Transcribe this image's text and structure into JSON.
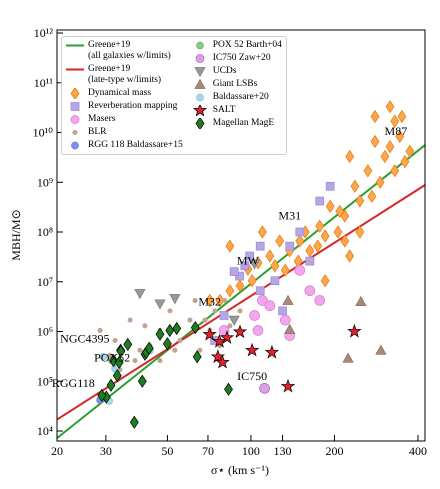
{
  "chart_data": {
    "type": "scatter",
    "xscale": "log",
    "yscale": "log",
    "x_label": "σ⋆ (km s⁻¹)",
    "y_label": "MBH/M⊙",
    "xlim": [
      20,
      424
    ],
    "ylim": [
      6300,
      1150000000000
    ],
    "xticks": [
      20,
      30,
      50,
      70,
      100,
      130,
      200,
      400
    ],
    "yticks": [
      {
        "value": 10000,
        "label": "10⁴"
      },
      {
        "value": 100000,
        "label": "10⁵"
      },
      {
        "value": 1000000,
        "label": "10⁶"
      },
      {
        "value": 10000000,
        "label": "10⁷"
      },
      {
        "value": 100000000,
        "label": "10⁸"
      },
      {
        "value": 1000000000,
        "label": "10⁹"
      },
      {
        "value": 10000000000,
        "label": "10¹⁰"
      },
      {
        "value": 100000000000,
        "label": "10¹¹"
      },
      {
        "value": 1000000000000,
        "label": "10¹²"
      }
    ],
    "series": [
      {
        "name": "Greene+19\n(all galaxies w/limits)",
        "type": "line",
        "color": "#2ca02c",
        "x": [
          20,
          424
        ],
        "values": [
          7200,
          5600000000
        ]
      },
      {
        "name": "Greene+19\n(late-type w/limits)",
        "type": "line",
        "color": "#d62728",
        "x": [
          20,
          424
        ],
        "values": [
          17000,
          880000000
        ]
      },
      {
        "name": "Dynamical mass",
        "type": "scatter",
        "marker": "diamond",
        "color": "#ffa64d",
        "edge": "#e07a10",
        "x": [
          374,
          359,
          344,
          330,
          317,
          304,
          292,
          280,
          273,
          264,
          247,
          237,
          227,
          218,
          209,
          206,
          193,
          185,
          177,
          174,
          163,
          157,
          150,
          148,
          138,
          133,
          127,
          122,
          117,
          110,
          106,
          101,
          97.5,
          91.3,
          84,
          77.3,
          71.1,
          84,
          185,
          350,
          330,
          280,
          317,
          247,
          227,
          218
        ],
        "values": [
          4200000000,
          2600000000,
          8300000000,
          1700000000,
          5200000000,
          3300000000,
          1000000000,
          6600000000,
          520000000,
          1700000000,
          420000000,
          830000000,
          3300000000,
          210000000,
          260000000,
          100000000,
          330000000,
          83000000,
          130000000,
          52000000,
          42000000,
          100000000,
          66000000,
          26000000,
          42000000,
          17000000,
          66000000,
          21000000,
          33000000,
          100000000,
          24000000,
          10500000,
          18000000,
          8300000,
          6600000,
          4200000,
          4200000,
          52000000,
          10500000,
          21000000000,
          17000000000,
          21000000000,
          33000000000,
          100000000,
          33000000,
          66000000
        ]
      },
      {
        "name": "Reverberation mapping",
        "type": "scatter",
        "marker": "square",
        "color": "#b5a6e6",
        "edge": "#9a88d8",
        "x": [
          95,
          99,
          91,
          108,
          138,
          150,
          177,
          193,
          108,
          122,
          80,
          74,
          87,
          130,
          163
        ],
        "values": [
          21000000,
          33000000,
          13000000,
          6600000,
          52000000,
          100000000,
          420000000,
          830000000,
          52000000,
          10500000,
          2100000,
          660000,
          16000000,
          2600000,
          26000000
        ]
      },
      {
        "name": "Masers",
        "type": "scatter",
        "marker": "circle",
        "size": 5,
        "color": "#f2a6ec",
        "edge": "#d77bd2",
        "x": [
          110,
          117,
          133,
          138,
          150,
          163,
          106,
          80,
          177,
          103
        ],
        "values": [
          4200000,
          3300000,
          1700000,
          830000,
          17000000,
          6600000,
          1050000,
          1050000,
          4200000,
          2100000
        ]
      },
      {
        "name": "BLR",
        "type": "scatter",
        "marker": "circle",
        "size": 2.2,
        "color": "#c4a291",
        "edge": "#c4a291",
        "x": [
          28.6,
          32.4,
          36.7,
          39.8,
          43.3,
          47,
          51.1,
          55.5,
          60.3,
          65.5,
          71.1,
          74.2,
          77.3,
          84,
          91.3,
          33.7,
          38.2,
          47,
          53.2,
          62.9,
          68.3,
          80.6,
          31,
          41.5
        ],
        "values": [
          1050000,
          660000,
          1700000,
          420000,
          520000,
          1050000,
          2600000,
          660000,
          1700000,
          420000,
          1050000,
          2600000,
          520000,
          1300000,
          2600000,
          170000,
          260000,
          260000,
          420000,
          4200000,
          1700000,
          4200000,
          330000,
          1300000
        ]
      },
      {
        "name": "RGG 118 Baldassare+15",
        "type": "scatter",
        "marker": "circle",
        "size": 3.5,
        "color": "#7f90ea",
        "edge": "#6a7cd8",
        "x": [
          28.6
        ],
        "values": [
          42000
        ]
      },
      {
        "name": "POX 52 Barth+04",
        "type": "scatter",
        "marker": "circle",
        "size": 3.5,
        "color": "#8cc98c",
        "edge": "#6cb06c",
        "x": [
          31.6
        ],
        "values": [
          260000
        ]
      },
      {
        "name": "IC750 Zaw+20",
        "type": "scatter",
        "marker": "circle",
        "size": 5,
        "color": "#dba0e6",
        "edge": "#b060c8",
        "x": [
          112
        ],
        "values": [
          72000
        ]
      },
      {
        "name": "UCDs",
        "type": "scatter",
        "marker": "triangle-down",
        "color": "#999",
        "edge": "#777",
        "x": [
          39.8,
          53.2,
          47,
          103,
          87
        ],
        "values": [
          5800000,
          4600000,
          3600000,
          23000000,
          1700000
        ]
      },
      {
        "name": "Giant LSBs",
        "type": "scatter",
        "marker": "triangle-up",
        "color": "#a8887a",
        "edge": "#8a6a5c",
        "x": [
          136,
          249,
          138,
          224,
          294
        ],
        "values": [
          4200000,
          4000000,
          1100000,
          290000,
          420000
        ]
      },
      {
        "name": "Baldassare+20",
        "type": "scatter",
        "marker": "circle",
        "size": 3.5,
        "color": "#a8d8e8",
        "edge": "#88c0d8",
        "x": [
          29.4,
          32.4,
          30.8,
          43.3
        ],
        "values": [
          310000,
          180000,
          40000,
          420000
        ]
      },
      {
        "name": "SALT",
        "type": "scatter",
        "marker": "star",
        "color": "#e8202a",
        "edge": "#000",
        "x": [
          236,
          136,
          119,
          101,
          91.3,
          82,
          77,
          76,
          79,
          71
        ],
        "values": [
          1000000,
          79000,
          380000,
          420000,
          980000,
          750000,
          630000,
          310000,
          240000,
          870000
        ]
      },
      {
        "name": "Magellan MagE",
        "type": "scatter",
        "marker": "diamond",
        "color": "#1e7d1e",
        "edge": "#000",
        "x": [
          30.1,
          29,
          31.3,
          32,
          33,
          33.5,
          33.9,
          34,
          36,
          41.5,
          42,
          43,
          47,
          51,
          54,
          63,
          83,
          38,
          40.6,
          64,
          50
        ],
        "values": [
          48000,
          52000,
          83000,
          260000,
          130000,
          240000,
          420000,
          400000,
          550000,
          350000,
          380000,
          460000,
          880000,
          1050000,
          1150000,
          1200000,
          69000,
          15000,
          100000,
          310000,
          570000
        ]
      }
    ],
    "annotations": [
      {
        "text": "M87",
        "x": 333,
        "y": 9000000000
      },
      {
        "text": "M31",
        "x": 138,
        "y": 180000000
      },
      {
        "text": "MW",
        "x": 97.5,
        "y": 22000000
      },
      {
        "text": "M32",
        "x": 71,
        "y": 3300000
      },
      {
        "text": "NGC4395",
        "x": 25.2,
        "y": 600000
      },
      {
        "text": "POX52",
        "x": 31.6,
        "y": 250000
      },
      {
        "text": "RGG118",
        "x": 22.9,
        "y": 76000
      },
      {
        "text": "IC750",
        "x": 101,
        "y": 105000
      }
    ]
  }
}
